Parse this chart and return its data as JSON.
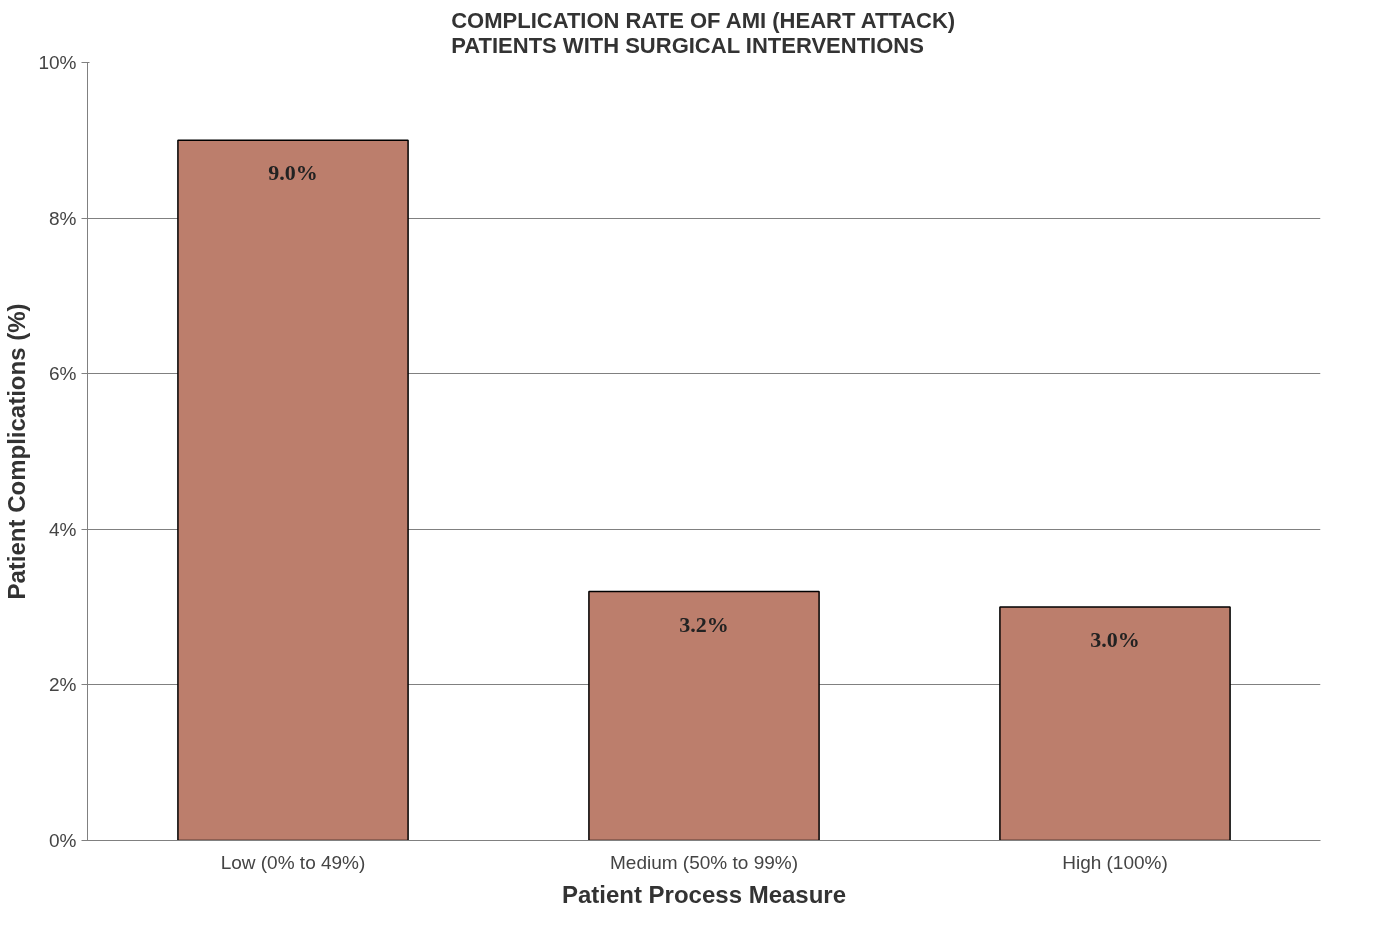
{
  "chart_data": {
    "type": "bar",
    "title": "COMPLICATION RATE OF AMI (HEART ATTACK)\nPATIENTS WITH SURGICAL INTERVENTIONS",
    "xlabel": "Patient Process Measure",
    "ylabel": "Patient Complications (%)",
    "categories": [
      "Low (0% to 49%)",
      "Medium (50% to 99%)",
      "High (100%)"
    ],
    "values": [
      9.0,
      3.2,
      3.0
    ],
    "color": "#bc7e6c",
    "value_labels": [
      "9.0%",
      "3.2%",
      "3.0%"
    ],
    "ylim": [
      0,
      10
    ],
    "yticks": [
      {
        "value": 0,
        "label": "0%"
      },
      {
        "value": 2,
        "label": "2%"
      },
      {
        "value": 4,
        "label": "4%"
      },
      {
        "value": 6,
        "label": "6%"
      },
      {
        "value": 8,
        "label": "8%"
      },
      {
        "value": 10,
        "label": "10%"
      }
    ],
    "grid": "y"
  }
}
